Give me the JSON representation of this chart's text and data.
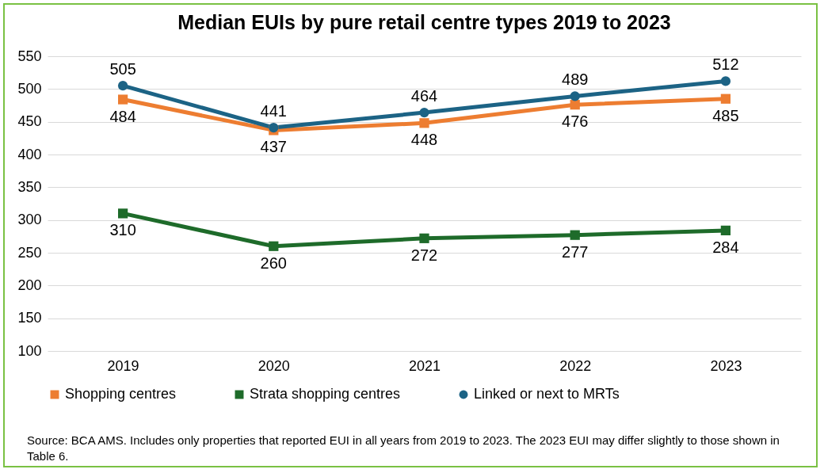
{
  "chart_data": {
    "type": "line",
    "title": "Median EUIs by pure retail centre types 2019 to 2023",
    "categories": [
      "2019",
      "2020",
      "2021",
      "2022",
      "2023"
    ],
    "series": [
      {
        "name": "Shopping centres",
        "color": "#ed7d31",
        "marker": "square",
        "values": [
          484,
          437,
          448,
          476,
          485
        ]
      },
      {
        "name": "Strata shopping centres",
        "color": "#1e6b2a",
        "marker": "square",
        "values": [
          310,
          260,
          272,
          277,
          284
        ]
      },
      {
        "name": "Linked or next to MRTs",
        "color": "#1c6385",
        "marker": "circle",
        "values": [
          505,
          441,
          464,
          489,
          512
        ]
      }
    ],
    "ylim": [
      100,
      550
    ],
    "yticks": [
      100,
      150,
      200,
      250,
      300,
      350,
      400,
      450,
      500,
      550
    ],
    "grid": "y",
    "legend": "bottom",
    "data_labels": true,
    "line_style": "solid",
    "annotations": [
      "Source: BCA AMS.  Includes only properties that reported EUI in all years from 2019 to 2023.  The 2023 EUI may differ slightly to those shown in Table 6."
    ]
  }
}
